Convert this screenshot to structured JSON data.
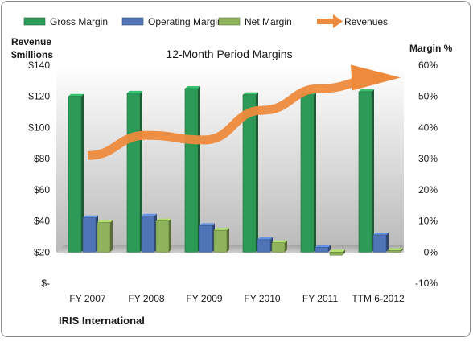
{
  "chart_data": {
    "type": "bar",
    "title": "12-Month Period Margins",
    "company": "IRIS International",
    "y_left_label": [
      "Revenue",
      "$millions"
    ],
    "y_right_label": "Margin %",
    "categories": [
      "FY 2007",
      "FY 2008",
      "FY 2009",
      "FY 2010",
      "FY 2011",
      "TTM 6-2012"
    ],
    "y_left_ticks": [
      "$-",
      "$20",
      "$40",
      "$60",
      "$80",
      "$100",
      "$120",
      "$140"
    ],
    "y_right_ticks": [
      "-10%",
      "0%",
      "10%",
      "20%",
      "30%",
      "40%",
      "50%",
      "60%"
    ],
    "y_left_range": [
      0,
      140
    ],
    "y_right_range": [
      -10,
      60
    ],
    "legend_position": "top",
    "grid": false,
    "series": [
      {
        "name": "Gross Margin",
        "axis": "right",
        "kind": "bar",
        "color": "#2e9a58",
        "values": [
          50,
          51,
          52.5,
          50.5,
          50.5,
          51.5
        ]
      },
      {
        "name": "Operating Margin",
        "axis": "right",
        "kind": "bar",
        "color": "#4f74b8",
        "values": [
          11,
          11.5,
          8.5,
          4,
          1.5,
          5.5
        ]
      },
      {
        "name": "Net Margin",
        "axis": "right",
        "kind": "bar",
        "color": "#8fb35a",
        "values": [
          9.5,
          10,
          7,
          3,
          -1,
          0.5
        ]
      },
      {
        "name": "Revenues",
        "axis": "left",
        "kind": "line",
        "color": "#ed8a3c",
        "values": [
          82,
          95,
          92,
          111,
          125,
          131
        ]
      }
    ]
  }
}
